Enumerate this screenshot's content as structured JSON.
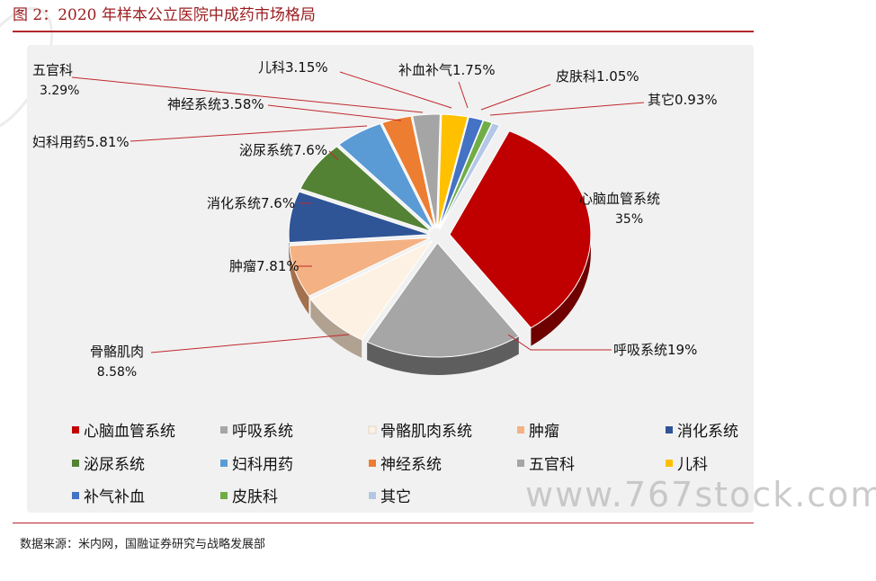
{
  "page": {
    "title": "图 2：2020 年样本公立医院中成药市场格局",
    "source": "数据来源：米内网，国融证券研究与战略发展部",
    "watermark": "www.767stock.com"
  },
  "chart_data": {
    "type": "pie",
    "title": "",
    "slices": [
      {
        "name": "心脑血管系统",
        "value": 35,
        "label": "心脑血管系统",
        "value_label": "35%",
        "color": "#c00000",
        "side": "#6e0000"
      },
      {
        "name": "呼吸系统",
        "value": 19,
        "label": "呼吸系统19%",
        "value_label": "",
        "color": "#a6a6a6",
        "side": "#5e5e5e"
      },
      {
        "name": "骨骼肌肉系统",
        "value": 8.58,
        "label": "骨骼肌肉",
        "value_label": "8.58%",
        "color": "#fdf1e3",
        "side": "#b0a190"
      },
      {
        "name": "肿瘤",
        "value": 7.81,
        "label": "肿瘤7.81%",
        "value_label": "",
        "color": "#f4b183",
        "side": "#a2704c"
      },
      {
        "name": "消化系统",
        "value": 7.6,
        "label": "消化系统7.6%",
        "value_label": "",
        "color": "#2f5597",
        "side": "#1a3260"
      },
      {
        "name": "泌尿系统",
        "value": 7.6,
        "label": "泌尿系统7.6%",
        "value_label": "",
        "color": "#548235",
        "side": "#2f4a1d"
      },
      {
        "name": "妇科用药",
        "value": 5.81,
        "label": "妇科用药5.81%",
        "value_label": "",
        "color": "#5b9bd5",
        "side": "#34628d"
      },
      {
        "name": "神经系统",
        "value": 3.58,
        "label": "神经系统3.58%",
        "value_label": "",
        "color": "#ed7d31",
        "side": "#9a4e1b"
      },
      {
        "name": "五官科",
        "value": 3.29,
        "label": "五官科",
        "value_label": "3.29%",
        "color": "#a5a5a5",
        "side": "#5e5e5e"
      },
      {
        "name": "儿科",
        "value": 3.15,
        "label": "儿科3.15%",
        "value_label": "",
        "color": "#ffc000",
        "side": "#a07800"
      },
      {
        "name": "补气补血",
        "value": 1.75,
        "label": "补血补气1.75%",
        "value_label": "",
        "color": "#4472c4",
        "side": "#26467e"
      },
      {
        "name": "皮肤科",
        "value": 1.05,
        "label": "皮肤科1.05%",
        "value_label": "",
        "color": "#70ad47",
        "side": "#446c29"
      },
      {
        "name": "其它",
        "value": 0.93,
        "label": "其它0.93%",
        "value_label": "",
        "color": "#b4c7e7",
        "side": "#7588a8"
      }
    ],
    "legend": {
      "placement": "bottom",
      "items": [
        {
          "name": "心脑血管系统",
          "color": "#c00000"
        },
        {
          "name": "呼吸系统",
          "color": "#a6a6a6"
        },
        {
          "name": "骨骼肌肉系统",
          "color": "#fdf1e3"
        },
        {
          "name": "肿瘤",
          "color": "#f4b183"
        },
        {
          "name": "消化系统",
          "color": "#2f5597"
        },
        {
          "name": "泌尿系统",
          "color": "#548235"
        },
        {
          "name": "妇科用药",
          "color": "#5b9bd5"
        },
        {
          "name": "神经系统",
          "color": "#ed7d31"
        },
        {
          "name": "五官科",
          "color": "#a5a5a5"
        },
        {
          "name": "儿科",
          "color": "#ffc000"
        },
        {
          "name": "补气补血",
          "color": "#4472c4"
        },
        {
          "name": "皮肤科",
          "color": "#70ad47"
        },
        {
          "name": "其它",
          "color": "#b4c7e7"
        }
      ]
    }
  }
}
